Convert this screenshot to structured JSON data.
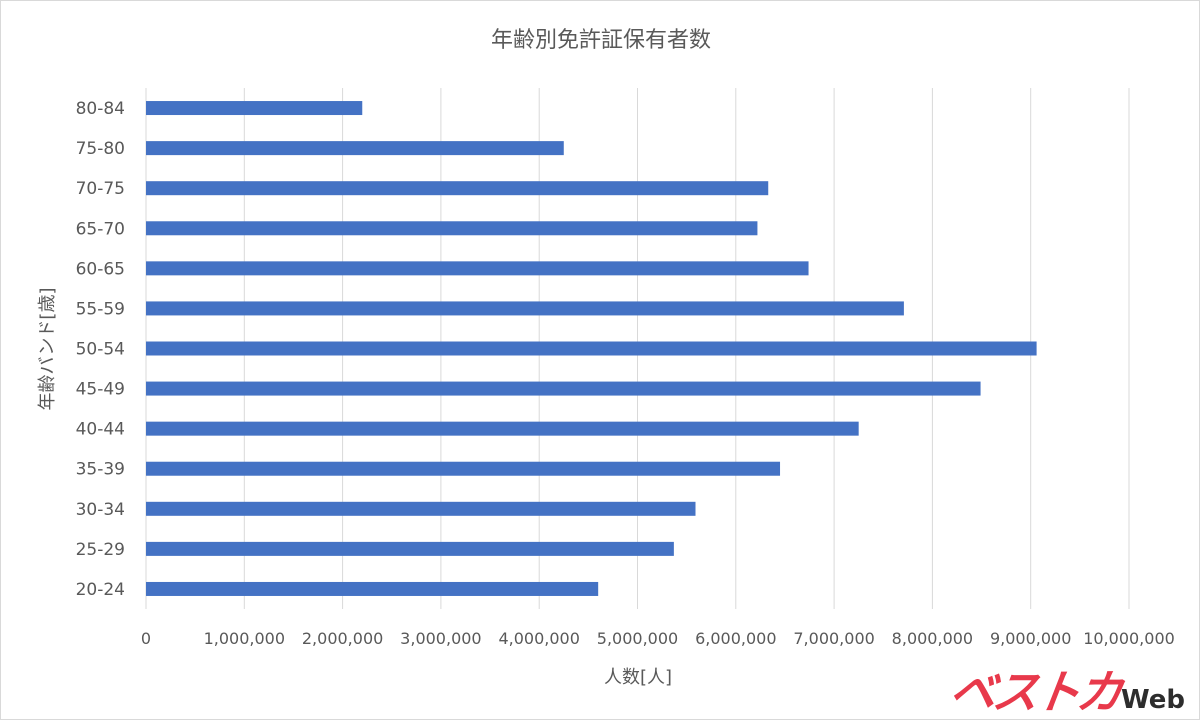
{
  "chart_data": {
    "type": "bar",
    "orientation": "horizontal",
    "title": "年齢別免許証保有者数",
    "xlabel": "人数[人]",
    "ylabel": "年齢バンド[歳]",
    "categories": [
      "20-24",
      "25-29",
      "30-34",
      "35-39",
      "40-44",
      "45-49",
      "50-54",
      "55-59",
      "60-65",
      "65-70",
      "70-75",
      "75-80",
      "80-84"
    ],
    "values": [
      4600000,
      5370000,
      5590000,
      6450000,
      7250000,
      8490000,
      9060000,
      7710000,
      6740000,
      6220000,
      6330000,
      4250000,
      2200000
    ],
    "xlim": [
      0,
      10000000
    ],
    "xticks": [
      "0",
      "1,000,000",
      "2,000,000",
      "3,000,000",
      "4,000,000",
      "5,000,000",
      "6,000,000",
      "7,000,000",
      "8,000,000",
      "9,000,000",
      "10,000,000"
    ],
    "bar_color": "#4472c4",
    "grid": true,
    "legend": "none"
  },
  "watermark": {
    "brand": "ベストカ",
    "suffix": "Web"
  }
}
